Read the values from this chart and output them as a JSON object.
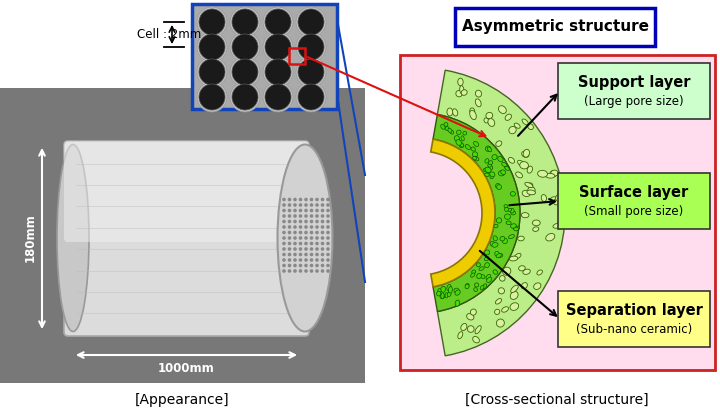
{
  "left_label": "[Appearance]",
  "right_label": "[Cross-sectional structure]",
  "cell_label": "Cell : 2mm",
  "asymmetric_label": "Asymmetric structure",
  "support_layer_title": "Support layer",
  "support_layer_sub": "(Large pore size)",
  "surface_layer_title": "Surface layer",
  "surface_layer_sub": "(Small pore size)",
  "separation_layer_title": "Separation layer",
  "separation_layer_sub": "(Sub-nano ceramic)",
  "dim_180": "180mm",
  "dim_1000": "1000mm",
  "bg_color": "#ffffff",
  "photo_bg": "#787878",
  "right_panel_bg": "#ffddee",
  "support_box_color": "#ccffcc",
  "surface_box_color": "#aaff55",
  "separation_box_color": "#ffff88",
  "asym_border": "#0000bb",
  "right_border": "#cc2222",
  "cell_border": "#1144bb",
  "cell_inset_bg": "#aaaaaa",
  "support_large_color": "#ccee88",
  "support_edge": "#448800",
  "surface_color": "#44cc00",
  "surface_edge": "#226600",
  "sep_color": "#eecc00",
  "sep_edge": "#887700"
}
